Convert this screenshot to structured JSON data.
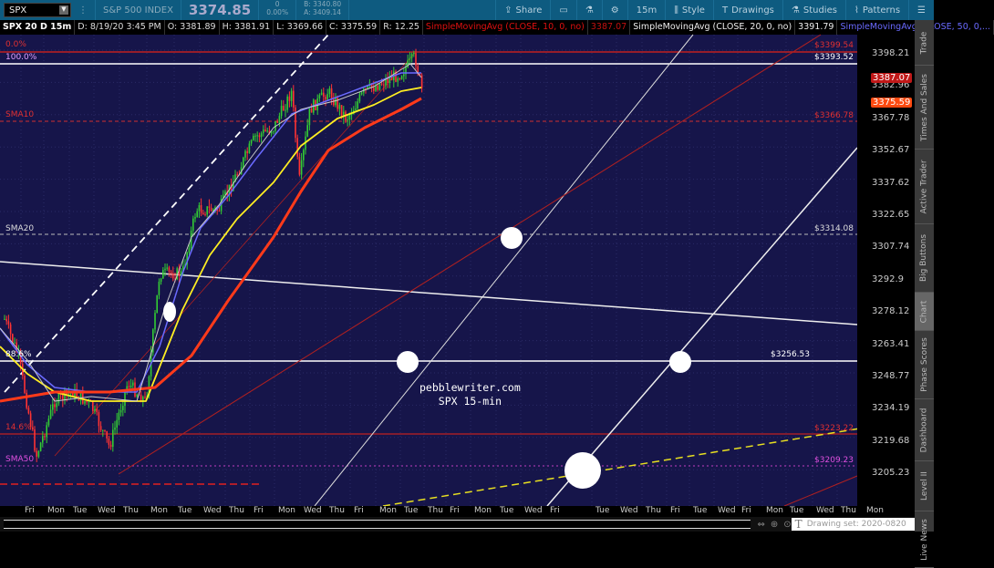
{
  "topbar": {
    "symbol": "SPX",
    "description": "S&P 500 INDEX",
    "last": "3374.85",
    "change": "0",
    "change_pct": "0.00%",
    "bid": "B: 3340.80",
    "ask": "A: 3409.14",
    "tools": [
      {
        "icon": "share-icon",
        "label": "Share"
      },
      {
        "icon": "message-icon",
        "label": ""
      },
      {
        "icon": "flask-icon",
        "label": ""
      },
      {
        "icon": "gear-icon",
        "label": ""
      },
      {
        "icon": "timeframe",
        "label": "15m"
      },
      {
        "icon": "candle-style-icon",
        "label": "Style"
      },
      {
        "icon": "text-tool-icon",
        "label": "Drawings"
      },
      {
        "icon": "flask-icon",
        "label": "Studies"
      },
      {
        "icon": "pattern-icon",
        "label": "Patterns"
      },
      {
        "icon": "menu-icon",
        "label": ""
      }
    ]
  },
  "infobar": {
    "title": "SPX 20 D 15m",
    "date": "D: 8/19/20 3:45 PM",
    "open": "O: 3381.89",
    "high": "H: 3381.91",
    "low": "L: 3369.66",
    "close": "C: 3375.59",
    "range": "R: 12.25",
    "sma10_label": "SimpleMovingAvg (CLOSE, 10, 0, no)",
    "sma10_value": "3387.07",
    "sma20_label": "SimpleMovingAvg (CLOSE, 20, 0, no)",
    "sma20_value": "3391.79",
    "sma50_label": "SimpleMovingAvg (CLOSE, 50, 0,..."
  },
  "colors": {
    "background": "#16154a",
    "sma10": "#ff3a1a",
    "sma20": "#ffee22",
    "sma50": "#6a6aff",
    "up": "#33cc33",
    "down": "#ff3333"
  },
  "price_axis": [
    "3398.21",
    "3382.96",
    "3367.78",
    "3352.67",
    "3337.62",
    "3322.65",
    "3307.74",
    "3292.9",
    "3278.12",
    "3263.41",
    "3248.77",
    "3234.19",
    "3219.68",
    "3205.23"
  ],
  "price_boxes": {
    "sma10": "3387.07",
    "last": "3375.59"
  },
  "levels": {
    "fib0": "0.0%",
    "fib0_price": "$3399.54",
    "fib100": "100.0%",
    "fib100_price": "$3393.52",
    "sma10": "SMA10",
    "sma10_price": "$3366.78",
    "sma20": "SMA20",
    "sma20_price": "$3314.08",
    "fib886": "88.6%",
    "fib886_price": "$3256.53",
    "fib146": "14.6%",
    "fib146_price": "$3223.22",
    "sma50": "SMA50",
    "sma50_price": "$3209.23"
  },
  "watermark": {
    "line1": "pebblewriter.com",
    "line2": "SPX 15-min"
  },
  "time_axis": [
    "Fri",
    "Mon",
    "Tue",
    "Wed",
    "Thu",
    "Mon",
    "Tue",
    "Wed",
    "Thu",
    "Fri",
    "Mon",
    "Wed",
    "Thu",
    "Fri",
    "Mon",
    "Tue",
    "Thu",
    "Fri",
    "Mon",
    "Tue",
    "Wed",
    "Fri",
    "Tue",
    "Wed",
    "Thu",
    "Fri",
    "Tue",
    "Wed",
    "Fri",
    "Mon",
    "Tue",
    "Wed",
    "Thu",
    "Mon"
  ],
  "side_tabs": [
    "Trade",
    "Times And Sales",
    "Active Trader",
    "Big Buttons",
    "Chart",
    "Phase Scores",
    "Dashboard",
    "Level II",
    "Live News"
  ],
  "drawing_set": "Drawing set: 2020-0820"
}
